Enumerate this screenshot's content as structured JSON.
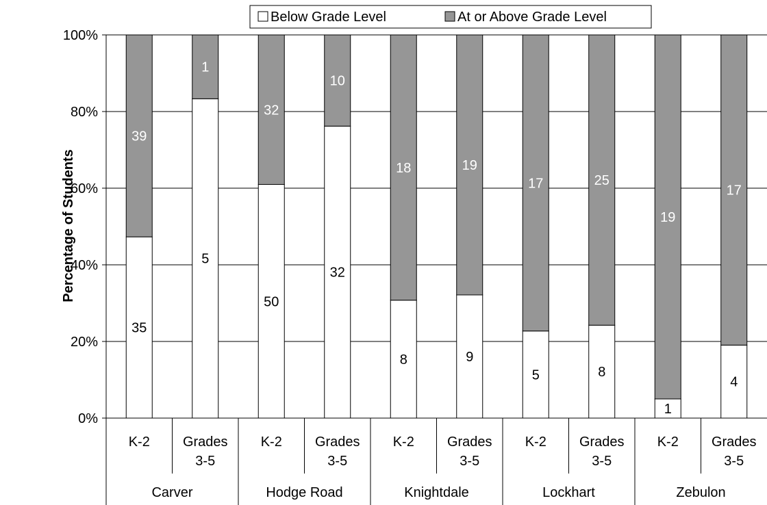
{
  "chart_data": {
    "type": "bar",
    "stacked": true,
    "percent_stacked": true,
    "ylabel": "Percentage of Students",
    "ylim": [
      0,
      100
    ],
    "y_ticks": [
      "0%",
      "20%",
      "40%",
      "60%",
      "80%",
      "100%"
    ],
    "grid": true,
    "legend_position": "top",
    "groups": [
      {
        "name": "Carver",
        "categories": [
          "K-2",
          "Grades 3-5"
        ]
      },
      {
        "name": "Hodge Road",
        "categories": [
          "K-2",
          "Grades 3-5"
        ]
      },
      {
        "name": "Knightdale",
        "categories": [
          "K-2",
          "Grades 3-5"
        ]
      },
      {
        "name": "Lockhart",
        "categories": [
          "K-2",
          "Grades 3-5"
        ]
      },
      {
        "name": "Zebulon",
        "categories": [
          "K-2",
          "Grades 3-5"
        ]
      }
    ],
    "category_labels": [
      [
        "K-2"
      ],
      [
        "Grades",
        "3-5"
      ],
      [
        "K-2"
      ],
      [
        "Grades",
        "3-5"
      ],
      [
        "K-2"
      ],
      [
        "Grades",
        "3-5"
      ],
      [
        "K-2"
      ],
      [
        "Grades",
        "3-5"
      ],
      [
        "K-2"
      ],
      [
        "Grades",
        "3-5"
      ]
    ],
    "series": [
      {
        "name": "Below Grade Level",
        "color": "#ffffff",
        "values": [
          35,
          5,
          50,
          32,
          8,
          9,
          5,
          8,
          1,
          4
        ]
      },
      {
        "name": "At or Above Grade Level",
        "color": "#969696",
        "values": [
          39,
          1,
          32,
          10,
          18,
          19,
          17,
          25,
          19,
          17
        ]
      }
    ]
  }
}
